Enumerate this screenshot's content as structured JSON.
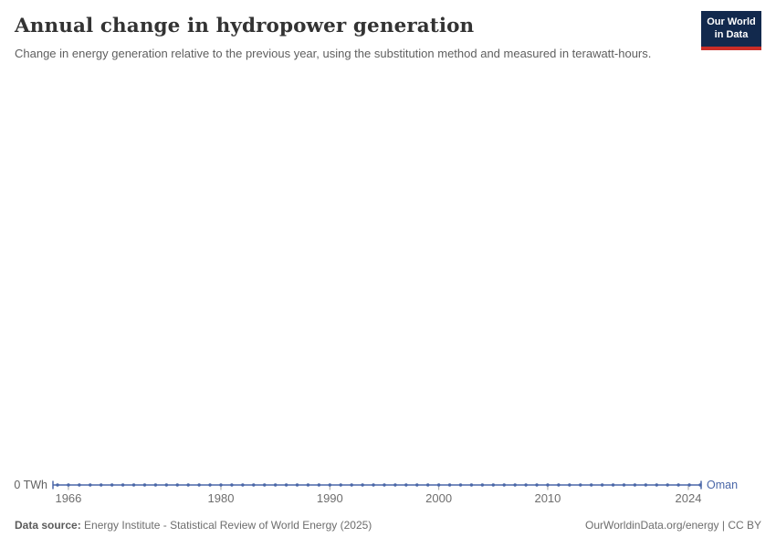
{
  "header": {
    "title": "Annual change in hydropower generation",
    "subtitle": "Change in energy generation relative to the previous year, using the substitution method and measured in terawatt-hours.",
    "logo": {
      "line1": "Our World",
      "line2": "in Data"
    }
  },
  "colors": {
    "line": "#4a67a8",
    "logo_bg": "#12294d",
    "logo_red": "#ca2d27",
    "axis_tick": "#a0a0a0"
  },
  "chart_data": {
    "type": "line",
    "title": "Annual change in hydropower generation",
    "ylabel": "TWh",
    "y_axis_label": "0 TWh",
    "ylim": [
      0,
      0
    ],
    "grid": false,
    "legend_position": "right-of-line",
    "entity_label": "Oman",
    "x_ticks": [
      1966,
      1980,
      1990,
      2000,
      2010,
      2024
    ],
    "x": [
      1965,
      1966,
      1967,
      1968,
      1969,
      1970,
      1971,
      1972,
      1973,
      1974,
      1975,
      1976,
      1977,
      1978,
      1979,
      1980,
      1981,
      1982,
      1983,
      1984,
      1985,
      1986,
      1987,
      1988,
      1989,
      1990,
      1991,
      1992,
      1993,
      1994,
      1995,
      1996,
      1997,
      1998,
      1999,
      2000,
      2001,
      2002,
      2003,
      2004,
      2005,
      2006,
      2007,
      2008,
      2009,
      2010,
      2011,
      2012,
      2013,
      2014,
      2015,
      2016,
      2017,
      2018,
      2019,
      2020,
      2021,
      2022,
      2023,
      2024
    ],
    "series": [
      {
        "name": "Oman",
        "values": [
          0,
          0,
          0,
          0,
          0,
          0,
          0,
          0,
          0,
          0,
          0,
          0,
          0,
          0,
          0,
          0,
          0,
          0,
          0,
          0,
          0,
          0,
          0,
          0,
          0,
          0,
          0,
          0,
          0,
          0,
          0,
          0,
          0,
          0,
          0,
          0,
          0,
          0,
          0,
          0,
          0,
          0,
          0,
          0,
          0,
          0,
          0,
          0,
          0,
          0,
          0,
          0,
          0,
          0,
          0,
          0,
          0,
          0,
          0,
          0
        ]
      }
    ]
  },
  "footer": {
    "datasource_label": "Data source:",
    "datasource_value": " Energy Institute - Statistical Review of World Energy (2025)",
    "rights": "OurWorldinData.org/energy | CC BY"
  }
}
